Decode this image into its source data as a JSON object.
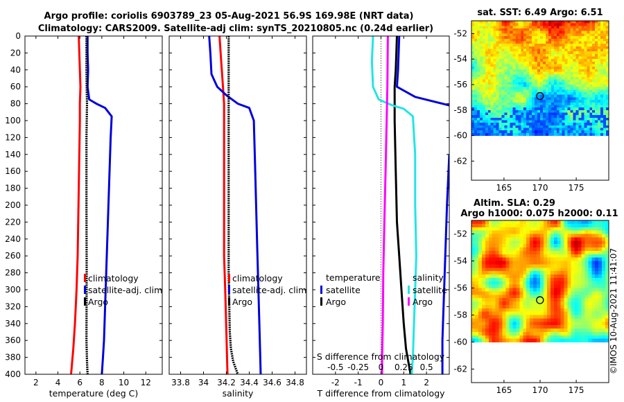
{
  "title": {
    "line1": "Argo profile: coriolis 6903789_23 05-Aug-2021 56.9S 169.98E (NRT data)",
    "line2": "Climatology: CARS2009. Satellite-adj clim: synTS_20210805.nc (0.24d earlier)"
  },
  "copyright": "©IMOS 10-Aug-2021 11:41:07",
  "colors": {
    "red": "#ff0000",
    "blue": "#0000dd",
    "black": "#000000",
    "cyan": "#22e5e5",
    "magenta": "#ff00ff",
    "dotted": "#555555"
  },
  "chart_data": [
    {
      "id": "temperature",
      "type": "line",
      "xlabel": "temperature (deg C)",
      "ylabel": "",
      "xlim": [
        1,
        13.5
      ],
      "ylim": [
        400,
        0
      ],
      "xticks": [
        "2",
        "4",
        "6",
        "8",
        "10",
        "12"
      ],
      "xtick_values": [
        2,
        4,
        6,
        8,
        10,
        12
      ],
      "yticks": [
        "0",
        "20",
        "40",
        "60",
        "80",
        "100",
        "120",
        "140",
        "160",
        "180",
        "200",
        "220",
        "240",
        "260",
        "280",
        "300",
        "320",
        "340",
        "360",
        "380",
        "400"
      ],
      "legend": [
        "climatology",
        "satellite-adj. clim",
        "Argo"
      ],
      "series": [
        {
          "name": "climatology",
          "color": "red",
          "points": [
            [
              5.9,
              0
            ],
            [
              5.95,
              20
            ],
            [
              6.0,
              40
            ],
            [
              6.05,
              60
            ],
            [
              6.0,
              80
            ],
            [
              6.0,
              100
            ],
            [
              5.95,
              140
            ],
            [
              5.9,
              180
            ],
            [
              5.85,
              220
            ],
            [
              5.8,
              260
            ],
            [
              5.7,
              300
            ],
            [
              5.55,
              340
            ],
            [
              5.4,
              370
            ],
            [
              5.2,
              400
            ]
          ]
        },
        {
          "name": "satellite-adj. clim",
          "color": "blue",
          "points": [
            [
              6.7,
              0
            ],
            [
              6.7,
              20
            ],
            [
              6.75,
              40
            ],
            [
              6.7,
              60
            ],
            [
              6.85,
              75
            ],
            [
              7.5,
              80
            ],
            [
              8.3,
              85
            ],
            [
              8.9,
              95
            ],
            [
              8.8,
              120
            ],
            [
              8.7,
              160
            ],
            [
              8.6,
              200
            ],
            [
              8.5,
              240
            ],
            [
              8.4,
              280
            ],
            [
              8.3,
              320
            ],
            [
              8.2,
              360
            ],
            [
              8.1,
              380
            ],
            [
              8.0,
              400
            ]
          ]
        },
        {
          "name": "Argo",
          "color": "black",
          "points": [
            [
              6.6,
              0
            ],
            [
              6.6,
              40
            ],
            [
              6.62,
              60
            ],
            [
              6.65,
              80
            ],
            [
              6.6,
              120
            ],
            [
              6.6,
              200
            ],
            [
              6.62,
              280
            ],
            [
              6.6,
              360
            ],
            [
              6.65,
              385
            ],
            [
              6.7,
              400
            ]
          ]
        }
      ]
    },
    {
      "id": "salinity",
      "type": "line",
      "xlabel": "salinity",
      "xlim": [
        33.7,
        34.9
      ],
      "ylim": [
        400,
        0
      ],
      "xticks": [
        "33.8",
        "34",
        "34.2",
        "34.4",
        "34.6",
        "34.8"
      ],
      "xtick_values": [
        33.8,
        34.0,
        34.2,
        34.4,
        34.6,
        34.8
      ],
      "legend": [
        "climatology",
        "satellite-adj. clim",
        "Argo"
      ],
      "series": [
        {
          "name": "climatology",
          "color": "red",
          "points": [
            [
              34.14,
              0
            ],
            [
              34.15,
              20
            ],
            [
              34.16,
              40
            ],
            [
              34.17,
              60
            ],
            [
              34.18,
              80
            ],
            [
              34.18,
              120
            ],
            [
              34.18,
              200
            ],
            [
              34.18,
              260
            ],
            [
              34.19,
              300
            ],
            [
              34.2,
              350
            ],
            [
              34.21,
              400
            ]
          ]
        },
        {
          "name": "satellite-adj. clim",
          "color": "blue",
          "points": [
            [
              34.05,
              0
            ],
            [
              34.06,
              20
            ],
            [
              34.07,
              45
            ],
            [
              34.12,
              60
            ],
            [
              34.2,
              70
            ],
            [
              34.3,
              80
            ],
            [
              34.4,
              85
            ],
            [
              34.44,
              100
            ],
            [
              34.45,
              150
            ],
            [
              34.46,
              200
            ],
            [
              34.47,
              250
            ],
            [
              34.48,
              300
            ],
            [
              34.49,
              350
            ],
            [
              34.5,
              400
            ]
          ]
        },
        {
          "name": "Argo",
          "color": "black",
          "points": [
            [
              34.22,
              0
            ],
            [
              34.22,
              60
            ],
            [
              34.22,
              80
            ],
            [
              34.22,
              200
            ],
            [
              34.22,
              280
            ],
            [
              34.23,
              350
            ],
            [
              34.24,
              370
            ],
            [
              34.26,
              385
            ],
            [
              34.3,
              400
            ]
          ]
        }
      ]
    },
    {
      "id": "difference",
      "type": "line",
      "xlabel": "T difference from climatology",
      "top_axis_label": "S difference from climatology",
      "xlim": [
        -3,
        3
      ],
      "ylim": [
        400,
        0
      ],
      "xticks": [
        "-2",
        "-1",
        "0",
        "1",
        "2"
      ],
      "xtick_values": [
        -2,
        -1,
        0,
        1,
        2
      ],
      "top_xticks": [
        "-0.5",
        "-0.25",
        "0",
        "0.25",
        "0.5"
      ],
      "top_xtick_values": [
        -0.5,
        -0.25,
        0,
        0.25,
        0.5
      ],
      "legend_left_title": "temperature",
      "legend_left": [
        "satellite",
        "Argo"
      ],
      "legend_right_title": "salinity",
      "legend_right": [
        "satellite",
        "Argo"
      ],
      "series": [
        {
          "name": "temperature satellite",
          "color": "blue",
          "points": [
            [
              0.8,
              0
            ],
            [
              0.75,
              40
            ],
            [
              0.7,
              60
            ],
            [
              1.5,
              72
            ],
            [
              2.7,
              80
            ],
            [
              3.0,
              82
            ]
          ]
        },
        {
          "name": "temperature satellite (lower)",
          "color": "blue",
          "points": [
            [
              3.0,
              140
            ],
            [
              2.9,
              200
            ],
            [
              2.8,
              280
            ],
            [
              2.7,
              360
            ],
            [
              2.7,
              400
            ]
          ]
        },
        {
          "name": "temperature Argo",
          "color": "black",
          "points": [
            [
              0.7,
              0
            ],
            [
              0.65,
              40
            ],
            [
              0.6,
              60
            ],
            [
              0.6,
              100
            ],
            [
              0.65,
              160
            ],
            [
              0.7,
              220
            ],
            [
              0.8,
              260
            ],
            [
              0.9,
              300
            ],
            [
              1.0,
              340
            ],
            [
              1.1,
              370
            ],
            [
              1.3,
              400
            ]
          ]
        },
        {
          "name": "salinity satellite",
          "color": "cyan",
          "points": [
            [
              -0.35,
              0
            ],
            [
              -0.4,
              30
            ],
            [
              -0.35,
              60
            ],
            [
              -0.1,
              75
            ],
            [
              0.5,
              82
            ],
            [
              1.0,
              86
            ],
            [
              1.4,
              95
            ],
            [
              1.5,
              140
            ],
            [
              1.5,
              200
            ],
            [
              1.55,
              260
            ],
            [
              1.5,
              300
            ],
            [
              1.45,
              340
            ],
            [
              1.4,
              380
            ],
            [
              1.35,
              400
            ]
          ]
        },
        {
          "name": "salinity Argo",
          "color": "magenta",
          "points": [
            [
              0.3,
              0
            ],
            [
              0.28,
              60
            ],
            [
              0.25,
              100
            ],
            [
              0.2,
              160
            ],
            [
              0.15,
              220
            ],
            [
              0.1,
              280
            ],
            [
              0.08,
              340
            ],
            [
              0.05,
              380
            ],
            [
              0.05,
              400
            ]
          ]
        }
      ]
    },
    {
      "id": "sst_map",
      "type": "heatmap",
      "title": "sat. SST: 6.49 Argo: 6.51",
      "xlim": [
        160.5,
        179.5
      ],
      "ylim": [
        -63.5,
        -51
      ],
      "data_ylim": [
        -60,
        -51
      ],
      "xticks": [
        "165",
        "170",
        "175"
      ],
      "xtick_values": [
        165,
        170,
        175
      ],
      "yticks": [
        "-52",
        "-54",
        "-56",
        "-58",
        "-60",
        "-62"
      ],
      "ytick_values": [
        -52,
        -54,
        -56,
        -58,
        -60,
        -62
      ],
      "marker": {
        "lon": 169.98,
        "lat": -56.9
      }
    },
    {
      "id": "sla_map",
      "type": "heatmap",
      "title_line1": "Altim. SLA: 0.29",
      "title_line2": "Argo h1000: 0.075 h2000: 0.11",
      "xlim": [
        160.5,
        179.5
      ],
      "ylim": [
        -63,
        -51
      ],
      "data_ylim": [
        -60,
        -51
      ],
      "xticks": [
        "165",
        "170",
        "175"
      ],
      "xtick_values": [
        165,
        170,
        175
      ],
      "yticks": [
        "-52",
        "-54",
        "-56",
        "-58",
        "-60",
        "-62"
      ],
      "ytick_values": [
        -52,
        -54,
        -56,
        -58,
        -60,
        -62
      ],
      "marker": {
        "lon": 169.98,
        "lat": -56.9
      }
    }
  ]
}
